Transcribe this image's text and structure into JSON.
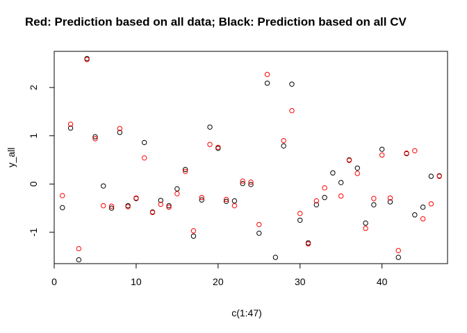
{
  "chart_data": {
    "type": "scatter",
    "title": "Red: Prediction  based on all data; Black: Prediction  based on all CV",
    "xlabel": "c(1:47)",
    "ylabel": "y_all",
    "xlim": [
      0,
      48
    ],
    "ylim": [
      -1.65,
      2.75
    ],
    "xticks": [
      0,
      10,
      20,
      30,
      40
    ],
    "yticks": [
      -1,
      0,
      1,
      2
    ],
    "grid": false,
    "colors": {
      "black_series": "#000000",
      "red_series": "#ff0000"
    },
    "series": [
      {
        "color": "#000000",
        "x": [
          1,
          2,
          3,
          4,
          5,
          6,
          7,
          8,
          9,
          10,
          11,
          12,
          13,
          14,
          15,
          16,
          17,
          18,
          19,
          20,
          21,
          22,
          23,
          24,
          25,
          26,
          27,
          28,
          29,
          30,
          31,
          32,
          33,
          34,
          35,
          36,
          37,
          38,
          39,
          40,
          41,
          42,
          43,
          44,
          45,
          46,
          47
        ],
        "y": [
          -0.49,
          1.16,
          -1.57,
          2.6,
          0.98,
          -0.04,
          -0.5,
          1.07,
          -0.45,
          -0.3,
          0.86,
          -0.58,
          -0.34,
          -0.45,
          -0.1,
          0.3,
          -1.08,
          -0.33,
          1.18,
          0.74,
          -0.36,
          -0.35,
          0.01,
          -0.01,
          -1.02,
          2.09,
          -1.52,
          0.79,
          2.07,
          -0.75,
          -1.22,
          -0.43,
          -0.28,
          0.23,
          0.03,
          0.5,
          0.33,
          -0.81,
          -0.43,
          0.72,
          -0.37,
          -1.52,
          0.63,
          -0.64,
          -0.48,
          0.16,
          0.17
        ]
      },
      {
        "color": "#ff0000",
        "x": [
          1,
          2,
          3,
          4,
          5,
          6,
          7,
          8,
          9,
          10,
          11,
          12,
          13,
          14,
          15,
          16,
          17,
          18,
          19,
          20,
          21,
          22,
          23,
          24,
          25,
          26,
          27,
          28,
          29,
          30,
          31,
          32,
          33,
          34,
          35,
          36,
          37,
          38,
          39,
          40,
          41,
          42,
          43,
          44,
          45,
          46,
          47
        ],
        "y": [
          -0.24,
          1.24,
          -1.34,
          2.58,
          0.94,
          -0.45,
          -0.46,
          1.15,
          -0.47,
          -0.29,
          0.54,
          -0.59,
          -0.42,
          -0.48,
          -0.2,
          0.26,
          -0.97,
          -0.28,
          0.82,
          0.76,
          -0.32,
          -0.45,
          0.06,
          0.04,
          -0.84,
          2.27,
          null,
          0.9,
          1.52,
          -0.61,
          -1.24,
          -0.35,
          -0.08,
          null,
          -0.25,
          0.49,
          0.22,
          -0.92,
          -0.3,
          0.6,
          -0.29,
          -1.38,
          0.64,
          0.69,
          -0.72,
          -0.41,
          0.16
        ]
      }
    ]
  }
}
